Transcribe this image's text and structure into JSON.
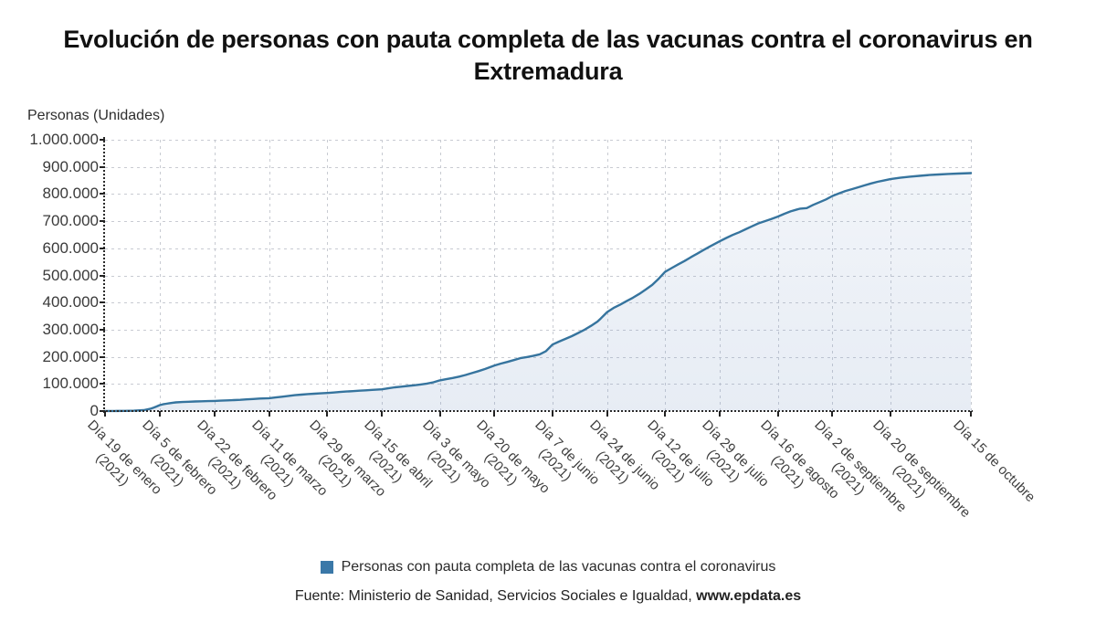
{
  "title": {
    "line1": "Evolución de personas con pauta completa de las vacunas contra el coronavirus en",
    "line2": "Extremadura"
  },
  "legend": {
    "marker_color": "#3a78a8",
    "label": "Personas con pauta completa de las vacunas contra el coronavirus"
  },
  "source": {
    "prefix": "Fuente: Ministerio de Sanidad, Servicios Sociales e Igualdad, ",
    "site": "www.epdata.es"
  },
  "chart_data": {
    "type": "area",
    "title": "Evolución de personas con pauta completa de las vacunas contra el coronavirus en Extremadura",
    "ylabel": "Personas (Unidades)",
    "xlabel": "",
    "ylim": [
      0,
      1000000
    ],
    "grid": true,
    "legend_position": "bottom",
    "line_color": "#36749e",
    "area_fill_top": "rgba(122,152,196,0.10)",
    "area_fill_bottom": "rgba(122,152,196,0.18)",
    "y_tick_labels": [
      "1.000.000",
      "900.000",
      "800.000",
      "700.000",
      "600.000",
      "500.000",
      "400.000",
      "300.000",
      "200.000",
      "100.000",
      "0"
    ],
    "x_span_days": 269,
    "x_tick_days": [
      0,
      17,
      34,
      51,
      69,
      86,
      104,
      121,
      139,
      156,
      174,
      191,
      209,
      226,
      244,
      269
    ],
    "categories": [
      {
        "line1": "Día 19 de enero",
        "line2": "(2021)"
      },
      {
        "line1": "Día 5 de febrero",
        "line2": "(2021)"
      },
      {
        "line1": "Día 22 de febrero",
        "line2": "(2021)"
      },
      {
        "line1": "Día 11 de marzo",
        "line2": "(2021)"
      },
      {
        "line1": "Día 29 de marzo",
        "line2": "(2021)"
      },
      {
        "line1": "Día 15 de abril",
        "line2": "(2021)"
      },
      {
        "line1": "Día 3 de mayo",
        "line2": "(2021)"
      },
      {
        "line1": "Día 20 de mayo",
        "line2": "(2021)"
      },
      {
        "line1": "Día 7 de junio",
        "line2": "(2021)"
      },
      {
        "line1": "Día 24 de junio",
        "line2": "(2021)"
      },
      {
        "line1": "Día 12 de julio",
        "line2": "(2021)"
      },
      {
        "line1": "Día 29 de julio",
        "line2": "(2021)"
      },
      {
        "line1": "Día 16 de agosto",
        "line2": "(2021)"
      },
      {
        "line1": "Día 2 de septiembre",
        "line2": "(2021)"
      },
      {
        "line1": "Día 20 de septiembre",
        "line2": "(2021)"
      },
      {
        "line1": "Día 15 de octubre",
        "line2": ""
      }
    ],
    "values_at_ticks": [
      200,
      22000,
      37500,
      47500,
      66500,
      80000,
      113000,
      168000,
      245000,
      365000,
      513000,
      626000,
      717000,
      793000,
      855000,
      877000
    ],
    "series": [
      {
        "name": "Personas con pauta completa de las vacunas contra el coronavirus",
        "points": [
          [
            0,
            200
          ],
          [
            3,
            400
          ],
          [
            6,
            800
          ],
          [
            9,
            1500
          ],
          [
            12,
            3500
          ],
          [
            14,
            8000
          ],
          [
            15,
            12000
          ],
          [
            16,
            17000
          ],
          [
            17,
            22000
          ],
          [
            18,
            25000
          ],
          [
            19,
            27000
          ],
          [
            20,
            29000
          ],
          [
            21,
            30500
          ],
          [
            22,
            32000
          ],
          [
            24,
            33500
          ],
          [
            26,
            34500
          ],
          [
            28,
            35300
          ],
          [
            30,
            36000
          ],
          [
            32,
            36800
          ],
          [
            34,
            37500
          ],
          [
            36,
            38500
          ],
          [
            38,
            39500
          ],
          [
            40,
            40500
          ],
          [
            42,
            41500
          ],
          [
            44,
            43000
          ],
          [
            46,
            44500
          ],
          [
            48,
            46000
          ],
          [
            51,
            47500
          ],
          [
            53,
            50000
          ],
          [
            55,
            53000
          ],
          [
            57,
            56000
          ],
          [
            59,
            58500
          ],
          [
            61,
            60500
          ],
          [
            63,
            62500
          ],
          [
            65,
            64000
          ],
          [
            67,
            65200
          ],
          [
            69,
            66500
          ],
          [
            71,
            68500
          ],
          [
            73,
            70500
          ],
          [
            75,
            72000
          ],
          [
            77,
            73500
          ],
          [
            79,
            75000
          ],
          [
            81,
            76500
          ],
          [
            83,
            78200
          ],
          [
            86,
            80000
          ],
          [
            88,
            84000
          ],
          [
            90,
            87500
          ],
          [
            92,
            90000
          ],
          [
            94,
            92500
          ],
          [
            96,
            95000
          ],
          [
            98,
            98000
          ],
          [
            100,
            101500
          ],
          [
            102,
            106000
          ],
          [
            104,
            113000
          ],
          [
            106,
            117500
          ],
          [
            108,
            122000
          ],
          [
            110,
            127000
          ],
          [
            112,
            133000
          ],
          [
            114,
            140000
          ],
          [
            116,
            147000
          ],
          [
            118,
            155000
          ],
          [
            121,
            168000
          ],
          [
            123,
            175000
          ],
          [
            125,
            181000
          ],
          [
            127,
            188000
          ],
          [
            129,
            195000
          ],
          [
            131,
            199000
          ],
          [
            133,
            203500
          ],
          [
            135,
            209000
          ],
          [
            137,
            221000
          ],
          [
            139,
            245000
          ],
          [
            141,
            256000
          ],
          [
            143,
            266000
          ],
          [
            145,
            276000
          ],
          [
            147,
            288000
          ],
          [
            149,
            300000
          ],
          [
            151,
            314000
          ],
          [
            153,
            330000
          ],
          [
            154,
            341000
          ],
          [
            156,
            365000
          ],
          [
            158,
            380000
          ],
          [
            160,
            392000
          ],
          [
            162,
            405000
          ],
          [
            164,
            418000
          ],
          [
            166,
            432000
          ],
          [
            168,
            448000
          ],
          [
            170,
            465000
          ],
          [
            172,
            488000
          ],
          [
            174,
            513000
          ],
          [
            176,
            527000
          ],
          [
            178,
            540000
          ],
          [
            180,
            553000
          ],
          [
            182,
            567000
          ],
          [
            184,
            580000
          ],
          [
            186,
            594000
          ],
          [
            188,
            607000
          ],
          [
            191,
            626000
          ],
          [
            193,
            638000
          ],
          [
            195,
            649000
          ],
          [
            197,
            659000
          ],
          [
            199,
            670000
          ],
          [
            201,
            681000
          ],
          [
            203,
            692000
          ],
          [
            205,
            700000
          ],
          [
            207,
            708000
          ],
          [
            209,
            717000
          ],
          [
            211,
            727000
          ],
          [
            213,
            736000
          ],
          [
            215,
            743000
          ],
          [
            216,
            746000
          ],
          [
            218,
            748000
          ],
          [
            220,
            760000
          ],
          [
            222,
            770000
          ],
          [
            224,
            780000
          ],
          [
            226,
            793000
          ],
          [
            228,
            802000
          ],
          [
            230,
            811000
          ],
          [
            232,
            818000
          ],
          [
            234,
            825000
          ],
          [
            236,
            832000
          ],
          [
            238,
            839000
          ],
          [
            240,
            845000
          ],
          [
            242,
            850000
          ],
          [
            244,
            855000
          ],
          [
            247,
            860000
          ],
          [
            250,
            864000
          ],
          [
            253,
            867000
          ],
          [
            256,
            870000
          ],
          [
            259,
            872000
          ],
          [
            262,
            874000
          ],
          [
            265,
            875500
          ],
          [
            269,
            877000
          ]
        ]
      }
    ]
  }
}
